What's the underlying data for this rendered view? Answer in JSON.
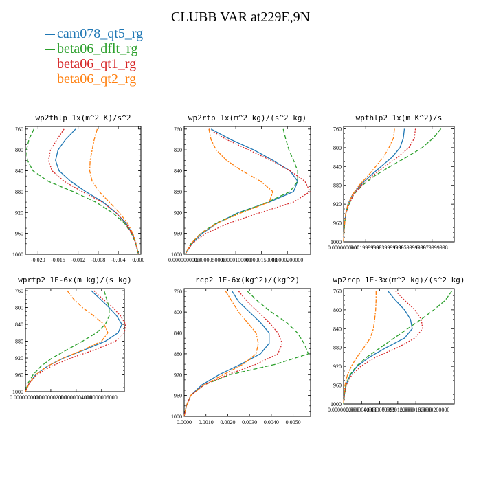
{
  "title": "CLUBB VAR at229E,9N",
  "legend": [
    {
      "name": "cam078_qt5_rg",
      "color": "#1f77b4"
    },
    {
      "name": "beta06_dflt_rg",
      "color": "#2ca02c"
    },
    {
      "name": "beta06_qt1_rg",
      "color": "#d62728"
    },
    {
      "name": "beta06_qt2_rg",
      "color": "#ff7f0e"
    }
  ],
  "chart_data": [
    {
      "type": "line",
      "title": "wp2thlp  1x(m^2 K)/s^2",
      "ylabel": "",
      "xlabel": "",
      "xlim": [
        -0.0225,
        0.0005
      ],
      "ylim": [
        1000,
        755
      ],
      "xticks": [
        -0.02,
        -0.016,
        -0.012,
        -0.008,
        -0.004,
        0.0
      ],
      "xtick_labels": [
        "-0.020",
        "-0.016",
        "-0.012",
        "-0.008",
        "-0.004",
        "0.000"
      ],
      "yticks": [
        760,
        800,
        840,
        880,
        920,
        960,
        1000
      ],
      "y": [
        760,
        780,
        800,
        820,
        840,
        860,
        880,
        900,
        920,
        940,
        960,
        980,
        1000
      ],
      "series": [
        {
          "name": "cam078_qt5_rg",
          "x": [
            -0.0125,
            -0.0145,
            -0.016,
            -0.0165,
            -0.0158,
            -0.0135,
            -0.0105,
            -0.007,
            -0.0045,
            -0.0025,
            -0.0012,
            -0.0005,
            0.0
          ]
        },
        {
          "name": "beta06_dflt_rg",
          "x": [
            -0.0208,
            -0.0218,
            -0.0223,
            -0.0221,
            -0.021,
            -0.018,
            -0.013,
            -0.0085,
            -0.0052,
            -0.0028,
            -0.0014,
            -0.0005,
            0.0
          ]
        },
        {
          "name": "beta06_qt1_rg",
          "x": [
            -0.0148,
            -0.0162,
            -0.0175,
            -0.0179,
            -0.0172,
            -0.0148,
            -0.0112,
            -0.0072,
            -0.0045,
            -0.0026,
            -0.0013,
            -0.0005,
            0.0
          ]
        },
        {
          "name": "beta06_qt2_rg",
          "x": [
            -0.0082,
            -0.0088,
            -0.0092,
            -0.0096,
            -0.0097,
            -0.0092,
            -0.0078,
            -0.0058,
            -0.0038,
            -0.0022,
            -0.0011,
            -0.0004,
            0.0
          ]
        }
      ]
    },
    {
      "type": "line",
      "title": "wp2rtp  1x(m^2 kg)/(s^2 kg)",
      "ylabel": "",
      "xlabel": "",
      "xlim": [
        0,
        2.45e-05
      ],
      "ylim": [
        1000,
        755
      ],
      "xticks": [
        0,
        5e-06,
        1e-05,
        1.5e-05,
        2e-05
      ],
      "xtick_labels": [
        "0.0000000000",
        "0.0000050000",
        "0.0000100000",
        "0.0000150000",
        "0.0000200000"
      ],
      "yticks": [
        760,
        800,
        840,
        880,
        920,
        960,
        1000
      ],
      "y": [
        760,
        780,
        800,
        820,
        840,
        860,
        880,
        900,
        920,
        940,
        960,
        980,
        1000
      ],
      "series": [
        {
          "name": "cam078_qt5_rg",
          "x": [
            5.2e-06,
            9e-06,
            1.35e-05,
            1.72e-05,
            2.05e-05,
            2.2e-05,
            2.12e-05,
            1.65e-05,
            1.05e-05,
            6.5e-06,
            3.5e-06,
            1.5e-06,
            2e-07
          ]
        },
        {
          "name": "beta06_dflt_rg",
          "x": [
            1.92e-05,
            1.97e-05,
            2.03e-05,
            2.12e-05,
            2.2e-05,
            2.2e-05,
            2.05e-05,
            1.62e-05,
            1.08e-05,
            6.3e-06,
            3.2e-06,
            1.3e-06,
            2e-07
          ]
        },
        {
          "name": "beta06_qt1_rg",
          "x": [
            4.8e-06,
            8.2e-06,
            1.25e-05,
            1.68e-05,
            2.05e-05,
            2.34e-05,
            2.44e-05,
            2.12e-05,
            1.48e-05,
            8.8e-06,
            4.2e-06,
            1.5e-06,
            2e-07
          ]
        },
        {
          "name": "beta06_qt2_rg",
          "x": [
            4.8e-06,
            5.2e-06,
            6.2e-06,
            8.2e-06,
            1.12e-05,
            1.48e-05,
            1.72e-05,
            1.65e-05,
            1.12e-05,
            6.5e-06,
            3.2e-06,
            1.3e-06,
            2e-07
          ]
        }
      ]
    },
    {
      "type": "line",
      "title": "wpthlp2  1x(m K^2)/s",
      "ylabel": "",
      "xlabel": "",
      "xlim": [
        0,
        0.01
      ],
      "ylim": [
        1000,
        755
      ],
      "xticks": [
        0,
        0.002,
        0.004,
        0.006,
        0.008
      ],
      "xtick_labels": [
        "0.0000000000",
        "0.0019999999",
        "0.0039999999",
        "0.0059999999",
        "0.0079999998"
      ],
      "yticks": [
        760,
        800,
        840,
        880,
        920,
        960,
        1000
      ],
      "y": [
        760,
        780,
        800,
        820,
        840,
        860,
        880,
        900,
        920,
        940,
        960,
        980,
        1000
      ],
      "series": [
        {
          "name": "cam078_qt5_rg",
          "x": [
            0.0055,
            0.0054,
            0.0051,
            0.0044,
            0.0034,
            0.0024,
            0.0015,
            0.0008,
            0.0004,
            0.0002,
            0.0001,
            3e-05,
            0.0
          ]
        },
        {
          "name": "beta06_dflt_rg",
          "x": [
            0.0088,
            0.0081,
            0.0071,
            0.0057,
            0.0042,
            0.0028,
            0.0017,
            0.0009,
            0.0005,
            0.0002,
            0.0001,
            3e-05,
            0.0
          ]
        },
        {
          "name": "beta06_qt1_rg",
          "x": [
            0.0065,
            0.0064,
            0.0059,
            0.0049,
            0.0037,
            0.0026,
            0.0016,
            0.0009,
            0.0005,
            0.0002,
            0.0001,
            3e-05,
            0.0
          ]
        },
        {
          "name": "beta06_qt2_rg",
          "x": [
            0.0046,
            0.0045,
            0.0041,
            0.0036,
            0.0029,
            0.0022,
            0.0014,
            0.0008,
            0.0004,
            0.0002,
            0.0001,
            3e-05,
            0.0
          ]
        }
      ]
    },
    {
      "type": "line",
      "title": "wprtp2  1E-6x(m kg)/(s kg)",
      "ylabel": "",
      "xlabel": "",
      "xlim": [
        0,
        7.8e-07
      ],
      "ylim": [
        1000,
        755
      ],
      "xticks": [
        0,
        2e-07,
        4e-07,
        6e-07
      ],
      "xtick_labels": [
        "0.0000000000",
        "0.0000002000",
        "0.0000004000",
        "0.0000006000"
      ],
      "yticks": [
        760,
        800,
        840,
        880,
        920,
        960,
        1000
      ],
      "y": [
        760,
        780,
        800,
        820,
        840,
        860,
        880,
        900,
        920,
        940,
        960,
        980,
        1000
      ],
      "series": [
        {
          "name": "cam078_qt5_rg",
          "x": [
            5.2e-07,
            5.9e-07,
            6.6e-07,
            7.2e-07,
            7.6e-07,
            7.3e-07,
            6.3e-07,
            4.7e-07,
            3e-07,
            1.7e-07,
            8e-08,
            3e-08,
            0.0
          ]
        },
        {
          "name": "beta06_dflt_rg",
          "x": [
            6.2e-07,
            6.4e-07,
            6.6e-07,
            6.6e-07,
            6.3e-07,
            5.6e-07,
            4.5e-07,
            3.3e-07,
            2.1e-07,
            1.2e-07,
            6e-08,
            2e-08,
            0.0
          ]
        },
        {
          "name": "beta06_qt1_rg",
          "x": [
            5.4e-07,
            6.1e-07,
            6.9e-07,
            7.5e-07,
            7.9e-07,
            7.8e-07,
            7.1e-07,
            5.5e-07,
            3.6e-07,
            2e-07,
            9e-08,
            3e-08,
            0.0
          ]
        },
        {
          "name": "beta06_qt2_rg",
          "x": [
            3.3e-07,
            3.8e-07,
            4.5e-07,
            5.4e-07,
            6.2e-07,
            6.5e-07,
            6e-07,
            4.6e-07,
            3e-07,
            1.7e-07,
            8e-08,
            3e-08,
            0.0
          ]
        }
      ]
    },
    {
      "type": "line",
      "title": "rcp2  1E-6x(kg^2)/(kg^2)",
      "ylabel": "",
      "xlabel": "",
      "xlim": [
        0,
        0.0058
      ],
      "ylim": [
        1000,
        755
      ],
      "xticks": [
        0,
        0.001,
        0.002,
        0.003,
        0.004,
        0.005
      ],
      "xtick_labels": [
        "0.0000",
        "0.0010",
        "0.0020",
        "0.0030",
        "0.0040",
        "0.0050"
      ],
      "yticks": [
        760,
        800,
        840,
        880,
        920,
        960,
        1000
      ],
      "y": [
        760,
        780,
        800,
        820,
        840,
        860,
        880,
        900,
        920,
        940,
        960,
        980,
        1000
      ],
      "series": [
        {
          "name": "cam078_qt5_rg",
          "x": [
            0.0022,
            0.0025,
            0.003,
            0.0035,
            0.0039,
            0.0039,
            0.0035,
            0.0026,
            0.0016,
            0.0008,
            0.0003,
            0.0001,
            0.0
          ]
        },
        {
          "name": "beta06_dflt_rg",
          "x": [
            0.0029,
            0.0034,
            0.004,
            0.0047,
            0.0052,
            0.0055,
            0.0057,
            0.0042,
            0.0021,
            0.0009,
            0.0003,
            0.0001,
            0.0
          ]
        },
        {
          "name": "beta06_qt1_rg",
          "x": [
            0.0025,
            0.0029,
            0.0034,
            0.0039,
            0.0043,
            0.0045,
            0.0043,
            0.0033,
            0.002,
            0.0009,
            0.0003,
            0.0001,
            0.0
          ]
        },
        {
          "name": "beta06_qt2_rg",
          "x": [
            0.0019,
            0.0022,
            0.0025,
            0.0029,
            0.0033,
            0.0034,
            0.0033,
            0.0027,
            0.0018,
            0.0009,
            0.0003,
            0.0001,
            0.0
          ]
        }
      ]
    },
    {
      "type": "line",
      "title": "wp2rcp  1E-3x(m^2 kg)/(s^2 kg)",
      "ylabel": "",
      "xlabel": "",
      "xlim": [
        0,
        2.45e-05
      ],
      "ylim": [
        1000,
        755
      ],
      "xticks": [
        0,
        4e-06,
        8e-06,
        1.2e-05,
        1.6e-05,
        2e-05
      ],
      "xtick_labels": [
        "0.0000000000",
        "0.0000040000",
        "0.0000079999",
        "0.0000120000",
        "0.0000160000",
        "0.0000200000"
      ],
      "yticks": [
        760,
        800,
        840,
        880,
        920,
        960,
        1000
      ],
      "y": [
        760,
        780,
        800,
        820,
        840,
        860,
        880,
        900,
        920,
        940,
        960,
        980,
        1000
      ],
      "series": [
        {
          "name": "cam078_qt5_rg",
          "x": [
            9.8e-06,
            1.15e-05,
            1.35e-05,
            1.48e-05,
            1.52e-05,
            1.35e-05,
            9.5e-06,
            5.8e-06,
            3e-06,
            1.4e-06,
            5e-07,
            2e-07,
            0.0
          ]
        },
        {
          "name": "beta06_dflt_rg",
          "x": [
            2.4e-05,
            2.25e-05,
            2e-05,
            1.72e-05,
            1.42e-05,
            1.12e-05,
            8.2e-06,
            5.2e-06,
            2.8e-06,
            1.3e-06,
            5e-07,
            2e-07,
            0.0
          ]
        },
        {
          "name": "beta06_qt1_rg",
          "x": [
            1.15e-05,
            1.35e-05,
            1.58e-05,
            1.72e-05,
            1.75e-05,
            1.58e-05,
            1.2e-05,
            7.2e-06,
            3.8e-06,
            1.7e-06,
            6e-07,
            2e-07,
            0.0
          ]
        },
        {
          "name": "beta06_qt2_rg",
          "x": [
            7.2e-06,
            7.2e-06,
            7.1e-06,
            6.9e-06,
            6.6e-06,
            5.9e-06,
            4.5e-06,
            3e-06,
            1.7e-06,
            8e-07,
            3e-07,
            1e-07,
            0.0
          ]
        }
      ]
    }
  ]
}
